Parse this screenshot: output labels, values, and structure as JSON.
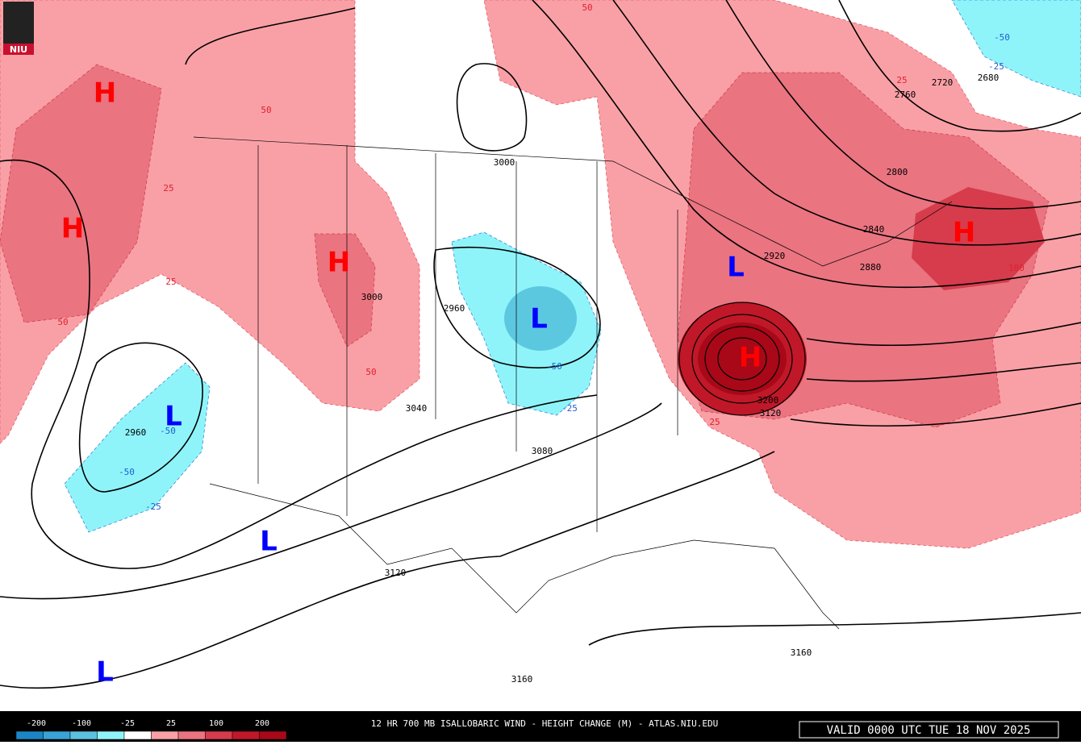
{
  "logo": "NIU",
  "pressure_centers": [
    "H",
    "H",
    "H",
    "H",
    "H",
    "L",
    "L",
    "L",
    "L",
    "L"
  ],
  "height_contour_labels": [
    "3000",
    "2960",
    "3000",
    "3040",
    "2960",
    "3080",
    "3120",
    "3160",
    "3160",
    "2760",
    "2720",
    "2680",
    "2800",
    "2840",
    "2880",
    "2920",
    "3200",
    "3120"
  ],
  "height_change_labels": [
    "50",
    "50",
    "25",
    "25",
    "50",
    "50",
    "25",
    "100",
    "25",
    "-50",
    "-25",
    "-50",
    "-25",
    "-50",
    "-50",
    "-25"
  ],
  "legend_labels": [
    "-200",
    "-100",
    "-25",
    "25",
    "100",
    "200"
  ],
  "title": "12 HR 700 MB ISALLOBARIC WIND - HEIGHT CHANGE (M) - ATLAS.NIU.EDU",
  "valid_time": "VALID 0000 UTC TUE 18 NOV 2025"
}
